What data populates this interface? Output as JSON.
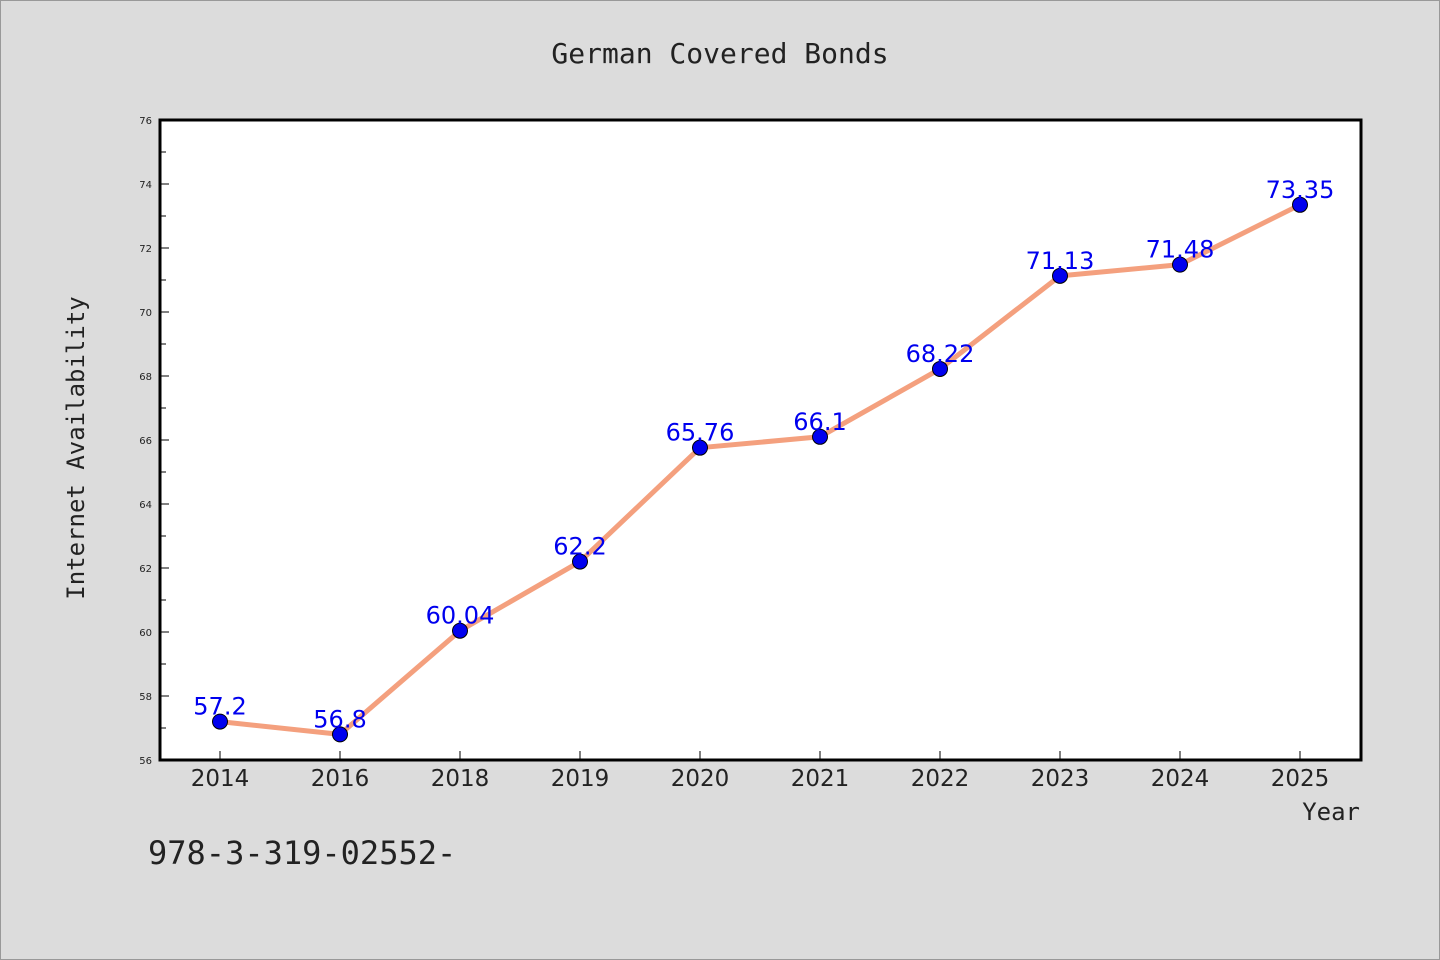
{
  "chart_data": {
    "type": "line",
    "title": "German Covered Bonds",
    "xlabel": "Year",
    "ylabel": "Internet Availability",
    "categories": [
      "2014",
      "2016",
      "2018",
      "2019",
      "2020",
      "2021",
      "2022",
      "2023",
      "2024",
      "2025"
    ],
    "series": [
      {
        "values": [
          57.2,
          56.8,
          60.04,
          62.2,
          65.76,
          66.1,
          68.22,
          71.13,
          71.48,
          73.35
        ],
        "labels": [
          "57.2",
          "56.8",
          "60.04",
          "62.2",
          "65.76",
          "66.1",
          "68.22",
          "71.13",
          "71.48",
          "73.35"
        ],
        "line_color": "#f4a07e",
        "marker_color": "#0000ee"
      }
    ],
    "ylim": [
      56,
      76
    ],
    "yticks": [
      "56",
      "58",
      "60",
      "62",
      "64",
      "66",
      "68",
      "70",
      "72",
      "74",
      "76"
    ],
    "grid": false,
    "legend": "none",
    "background": "#dcdcdc",
    "plot_background": "#ffffff"
  },
  "footer_text": "978-3-319-02552-"
}
